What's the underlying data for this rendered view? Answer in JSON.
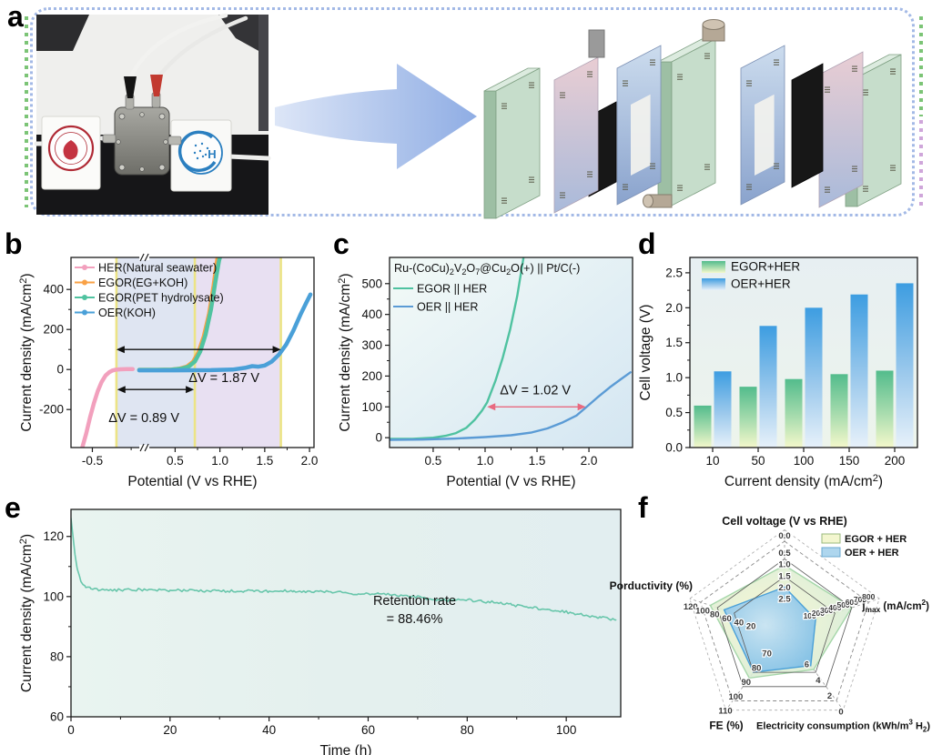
{
  "panels": {
    "a": "a",
    "b": "b",
    "c": "c",
    "d": "d",
    "e": "e",
    "f": "f"
  },
  "panel_a": {
    "logo_h_text": "H",
    "layers": [
      "end-plate",
      "gasket",
      "electrode",
      "flow-frame",
      "center-plate",
      "flow-frame",
      "electrode",
      "gasket",
      "end-plate"
    ]
  },
  "chart_data": [
    {
      "panel": "b",
      "type": "line",
      "xlabel": "Potential (V vs RHE)",
      "ylabel": "Current density (mA/cm^{2})",
      "xmap": [
        [
          -0.65,
          0.04
        ],
        [
          0.07,
          0.27
        ],
        [
          2.05,
          1.0
        ]
      ],
      "ylim": [
        -390,
        560
      ],
      "xticks": [
        {
          "v": -0.5,
          "t": "-0.5"
        },
        {
          "v": 0.5,
          "t": "0.5"
        },
        {
          "v": 1.0,
          "t": "1.0"
        },
        {
          "v": 1.5,
          "t": "1.5"
        },
        {
          "v": 2.0,
          "t": "2.0"
        }
      ],
      "yticks": [
        {
          "v": -200,
          "t": "-200"
        },
        {
          "v": 0,
          "t": "0"
        },
        {
          "v": 200,
          "t": "200"
        },
        {
          "v": 400,
          "t": "400"
        }
      ],
      "break_x_frac": 0.3,
      "regions": [
        {
          "x0": -0.19,
          "x1": 0.72,
          "color": "#dce2f1"
        },
        {
          "x0": 0.72,
          "x1": 1.68,
          "color": "#e6ddf1"
        }
      ],
      "vlines": {
        "xs": [
          -0.19,
          0.72,
          1.68
        ],
        "color": "#ece486"
      },
      "arrows": [
        {
          "x0": -0.19,
          "x1": 1.68,
          "y": 100,
          "label": "ΔV = 1.87 V",
          "color": "#111111",
          "label_dy": 36,
          "label_fx": 0.63
        },
        {
          "x0": -0.18,
          "x1": 0.71,
          "y": -100,
          "label": "ΔV = 0.89 V",
          "color": "#111111",
          "label_dy": 36,
          "label_fx": 0.3
        }
      ],
      "series": [
        {
          "name": "HER(Natural seawater)",
          "color": "#f2a0bd",
          "width": 4.5,
          "points": [
            [
              -0.63,
              -390
            ],
            [
              -0.58,
              -320
            ],
            [
              -0.53,
              -240
            ],
            [
              -0.48,
              -168
            ],
            [
              -0.43,
              -108
            ],
            [
              -0.38,
              -62
            ],
            [
              -0.33,
              -30
            ],
            [
              -0.28,
              -13
            ],
            [
              -0.24,
              -5
            ],
            [
              -0.2,
              -1
            ],
            [
              -0.14,
              1
            ],
            [
              -0.06,
              2
            ],
            [
              0.02,
              2
            ]
          ]
        },
        {
          "name": "EGOR(EG+KOH)",
          "color": "#f9a145",
          "width": 4.5,
          "points": [
            [
              0.1,
              -2
            ],
            [
              0.3,
              -2
            ],
            [
              0.45,
              -1
            ],
            [
              0.55,
              4
            ],
            [
              0.63,
              14
            ],
            [
              0.7,
              38
            ],
            [
              0.76,
              85
            ],
            [
              0.82,
              165
            ],
            [
              0.88,
              280
            ],
            [
              0.93,
              420
            ],
            [
              0.96,
              520
            ],
            [
              0.98,
              575
            ]
          ]
        },
        {
          "name": "EGOR(PET hydrolysate)",
          "color": "#50c3a0",
          "width": 4.5,
          "points": [
            [
              0.1,
              -2
            ],
            [
              0.3,
              -2
            ],
            [
              0.46,
              -1
            ],
            [
              0.57,
              4
            ],
            [
              0.65,
              14
            ],
            [
              0.72,
              40
            ],
            [
              0.78,
              90
            ],
            [
              0.84,
              175
            ],
            [
              0.9,
              300
            ],
            [
              0.95,
              440
            ],
            [
              0.99,
              545
            ],
            [
              1.01,
              575
            ]
          ]
        },
        {
          "name": "OER(KOH)",
          "color": "#4aa0d8",
          "width": 4.5,
          "points": [
            [
              0.1,
              -4
            ],
            [
              0.5,
              -4
            ],
            [
              0.9,
              -3
            ],
            [
              1.15,
              0
            ],
            [
              1.28,
              8
            ],
            [
              1.36,
              17
            ],
            [
              1.43,
              14
            ],
            [
              1.5,
              20
            ],
            [
              1.58,
              40
            ],
            [
              1.66,
              75
            ],
            [
              1.74,
              125
            ],
            [
              1.82,
              195
            ],
            [
              1.9,
              275
            ],
            [
              1.96,
              330
            ],
            [
              2.01,
              375
            ]
          ]
        }
      ],
      "legend": {
        "items": [
          "HER(Natural seawater)",
          "EGOR(EG+KOH)",
          "EGOR(PET hydrolysate)",
          "OER(KOH)"
        ],
        "marker": "line-dot"
      }
    },
    {
      "panel": "c",
      "type": "line",
      "title": "Ru-(CoCu)_{2}V_{2}O_{7}@Cu_{2}O(+) || Pt/C(-)",
      "xlabel": "Potential (V vs RHE)",
      "ylabel": "Current density (mA/cm^{2})",
      "xlim": [
        0.08,
        2.42
      ],
      "ylim": [
        -32,
        585
      ],
      "xticks": [
        {
          "v": 0.5,
          "t": "0.5"
        },
        {
          "v": 1.0,
          "t": "1.0"
        },
        {
          "v": 1.5,
          "t": "1.5"
        },
        {
          "v": 2.0,
          "t": "2.0"
        }
      ],
      "yticks": [
        {
          "v": 0,
          "t": "0"
        },
        {
          "v": 100,
          "t": "100"
        },
        {
          "v": 200,
          "t": "200"
        },
        {
          "v": 300,
          "t": "300"
        },
        {
          "v": 400,
          "t": "400"
        },
        {
          "v": 500,
          "t": "500"
        }
      ],
      "bg": "gradC",
      "arrows": [
        {
          "x0": 1.02,
          "x1": 1.97,
          "y": 100,
          "label": "ΔV = 1.02 V",
          "color": "#e86a80",
          "label_dy": -14,
          "label_fx": 0.6,
          "label_color": "#111111"
        }
      ],
      "series": [
        {
          "name": "EGOR || HER",
          "color": "#4fc2a0",
          "width": 2.4,
          "points": [
            [
              0.08,
              -4
            ],
            [
              0.3,
              -4
            ],
            [
              0.5,
              0
            ],
            [
              0.62,
              6
            ],
            [
              0.72,
              15
            ],
            [
              0.82,
              32
            ],
            [
              0.9,
              58
            ],
            [
              0.97,
              88
            ],
            [
              1.02,
              115
            ],
            [
              1.1,
              185
            ],
            [
              1.17,
              260
            ],
            [
              1.24,
              350
            ],
            [
              1.31,
              460
            ],
            [
              1.37,
              585
            ]
          ]
        },
        {
          "name": "OER || HER",
          "color": "#5b9bd5",
          "width": 2.4,
          "points": [
            [
              0.08,
              -7
            ],
            [
              0.4,
              -6
            ],
            [
              0.7,
              -3
            ],
            [
              1.0,
              2
            ],
            [
              1.25,
              8
            ],
            [
              1.45,
              17
            ],
            [
              1.6,
              30
            ],
            [
              1.75,
              50
            ],
            [
              1.88,
              72
            ],
            [
              1.97,
              98
            ],
            [
              2.08,
              130
            ],
            [
              2.2,
              163
            ],
            [
              2.3,
              188
            ],
            [
              2.4,
              212
            ]
          ]
        }
      ],
      "legend": {
        "items": [
          "EGOR || HER",
          "OER || HER"
        ],
        "marker": "line"
      }
    },
    {
      "panel": "d",
      "type": "bar",
      "xlabel": "Current density (mA/cm^{2})",
      "ylabel": "Cell voltage (V)",
      "ylim": [
        0,
        2.72
      ],
      "yticks": [
        {
          "v": 0,
          "t": "0.0"
        },
        {
          "v": 0.5,
          "t": "0.5"
        },
        {
          "v": 1.0,
          "t": "1.0"
        },
        {
          "v": 1.5,
          "t": "1.5"
        },
        {
          "v": 2.0,
          "t": "2.0"
        },
        {
          "v": 2.5,
          "t": "2.5"
        }
      ],
      "categories": [
        "10",
        "50",
        "100",
        "150",
        "200"
      ],
      "bg": "gradD",
      "series": [
        {
          "name": "EGOR+HER",
          "grad": "gradBarG",
          "values": [
            0.6,
            0.87,
            0.98,
            1.05,
            1.1
          ]
        },
        {
          "name": "OER+HER",
          "grad": "gradBarB",
          "values": [
            1.09,
            1.74,
            2.0,
            2.19,
            2.35
          ]
        }
      ]
    },
    {
      "panel": "e",
      "type": "line",
      "xlabel": "Time (h)",
      "ylabel": "Current density (mA/cm^{2})",
      "xlim": [
        0,
        111
      ],
      "ylim": [
        60,
        129
      ],
      "xticks": [
        {
          "v": 0,
          "t": "0"
        },
        {
          "v": 20,
          "t": "20"
        },
        {
          "v": 40,
          "t": "40"
        },
        {
          "v": 60,
          "t": "60"
        },
        {
          "v": 80,
          "t": "80"
        },
        {
          "v": 100,
          "t": "100"
        }
      ],
      "yticks": [
        {
          "v": 60,
          "t": "60"
        },
        {
          "v": 80,
          "t": "80"
        },
        {
          "v": 100,
          "t": "100"
        },
        {
          "v": 120,
          "t": "120"
        }
      ],
      "bg": "gradE",
      "annotation": {
        "lines": [
          "Retention rate",
          "= 88.46%"
        ],
        "fx": 0.625,
        "fy": 0.46
      },
      "series": [
        {
          "name": "j-t stability",
          "color": "#68c6ab",
          "width": 1.6,
          "jitter": 0.45,
          "points": [
            [
              0,
              126
            ],
            [
              0.4,
              120
            ],
            [
              0.8,
              114
            ],
            [
              1.3,
              109
            ],
            [
              2,
              105
            ],
            [
              3,
              103
            ],
            [
              4,
              102.6
            ],
            [
              6,
              102.2
            ],
            [
              10,
              102.2
            ],
            [
              15,
              102.3
            ],
            [
              20,
              102.1
            ],
            [
              25,
              102.0
            ],
            [
              30,
              101.9
            ],
            [
              35,
              101.8
            ],
            [
              40,
              101.8
            ],
            [
              45,
              101.9
            ],
            [
              50,
              101.7
            ],
            [
              55,
              101.3
            ],
            [
              58,
              100.9
            ],
            [
              62,
              101.0
            ],
            [
              65,
              100.6
            ],
            [
              68,
              100.2
            ],
            [
              71,
              99.6
            ],
            [
              74,
              99.0
            ],
            [
              77,
              98.6
            ],
            [
              80,
              98.9
            ],
            [
              83,
              98.4
            ],
            [
              86,
              98.0
            ],
            [
              89,
              97.2
            ],
            [
              92,
              96.6
            ],
            [
              95,
              95.8
            ],
            [
              98,
              95.2
            ],
            [
              101,
              94.6
            ],
            [
              104,
              93.8
            ],
            [
              107,
              93.0
            ],
            [
              110,
              92.2
            ]
          ]
        }
      ]
    },
    {
      "panel": "f",
      "type": "radar",
      "axes": [
        {
          "label": "Cell voltage (V vs RHE)",
          "edge": 0.0,
          "center": 3.85,
          "ticks": [
            {
              "v": 0.0,
              "t": "0.0"
            },
            {
              "v": 0.5,
              "t": "0.5"
            },
            {
              "v": 1.0,
              "t": "1.0"
            },
            {
              "v": 1.5,
              "t": "1.5"
            },
            {
              "v": 2.0,
              "t": "2.0"
            },
            {
              "v": 2.5,
              "t": "2.5"
            }
          ]
        },
        {
          "label": "j_{max} (mA/cm^{2})",
          "edge": 800,
          "center": -200,
          "ticks": [
            {
              "v": 100,
              "t": "100"
            },
            {
              "v": 200,
              "t": "200"
            },
            {
              "v": 300,
              "t": "300"
            },
            {
              "v": 400,
              "t": "400"
            },
            {
              "v": 500,
              "t": "500"
            },
            {
              "v": 600,
              "t": "600"
            },
            {
              "v": 700,
              "t": "700"
            },
            {
              "v": 800,
              "t": "800"
            }
          ]
        },
        {
          "label": "Electricity consumption (kWh/m^{3} H_{2})",
          "edge": 0,
          "center": 9.1,
          "ticks": [
            {
              "v": 0,
              "t": "0"
            },
            {
              "v": 2,
              "t": "2"
            },
            {
              "v": 4,
              "t": "4"
            },
            {
              "v": 6,
              "t": "6"
            }
          ]
        },
        {
          "label": "FE (%)",
          "edge": 110,
          "center": 60,
          "ticks": [
            {
              "v": 110,
              "t": "110"
            },
            {
              "v": 100,
              "t": "100"
            },
            {
              "v": 90,
              "t": "90"
            },
            {
              "v": 80,
              "t": "80"
            },
            {
              "v": 70,
              "t": "70"
            }
          ]
        },
        {
          "label": "Porductivity (%)",
          "edge": 120,
          "center": -19,
          "ticks": [
            {
              "v": 120,
              "t": "120"
            },
            {
              "v": 100,
              "t": "100"
            },
            {
              "v": 80,
              "t": "80"
            },
            {
              "v": 60,
              "t": "60"
            },
            {
              "v": 40,
              "t": "40"
            },
            {
              "v": 20,
              "t": "20"
            }
          ]
        }
      ],
      "series": [
        {
          "name": "EGOR + HER",
          "fill": "gradFegor",
          "stroke": "#a5d6a9",
          "values": [
            1.05,
            600,
            4.0,
            94,
            104
          ]
        },
        {
          "name": "OER + HER",
          "fill": "gradFoer",
          "stroke": "#4aa0d8",
          "values": [
            2.0,
            170,
            4.5,
            90,
            81
          ]
        }
      ],
      "legend": {
        "items": [
          {
            "label": "EGOR + HER",
            "swatch": "#f3f6cf",
            "border": "#9ab97c"
          },
          {
            "label": "OER + HER",
            "swatch": "#aed6ee",
            "border": "#6aa8d0"
          }
        ]
      }
    }
  ]
}
